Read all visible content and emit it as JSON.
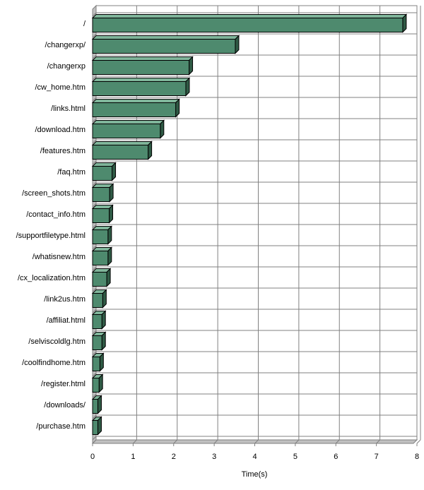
{
  "chart_data": {
    "type": "bar",
    "orientation": "horizontal",
    "categories": [
      "/",
      "/changerxp/",
      "/changerxp",
      "/cw_home.htm",
      "/links.html",
      "/download.htm",
      "/features.htm",
      "/faq.htm",
      "/screen_shots.htm",
      "/contact_info.htm",
      "/supportfiletype.html",
      "/whatisnew.htm",
      "/cx_localization.htm",
      "/link2us.htm",
      "/affiliat.html",
      "/selviscoldlg.htm",
      "/coolfindhome.htm",
      "/register.html",
      "/downloads/",
      "/purchase.htm"
    ],
    "values": [
      7.65,
      3.52,
      2.38,
      2.3,
      2.05,
      1.67,
      1.37,
      0.48,
      0.42,
      0.41,
      0.38,
      0.38,
      0.35,
      0.25,
      0.23,
      0.23,
      0.18,
      0.16,
      0.13,
      0.13
    ],
    "xlabel": "Time(s)",
    "xlim": [
      0,
      8
    ],
    "xticks": [
      0,
      1,
      2,
      3,
      4,
      5,
      6,
      7,
      8
    ],
    "grid": true,
    "legend": "none",
    "bar_color": "#4e8a6e",
    "bar_top_color": "#7fb59a",
    "bar_side_color": "#2f5a45"
  }
}
